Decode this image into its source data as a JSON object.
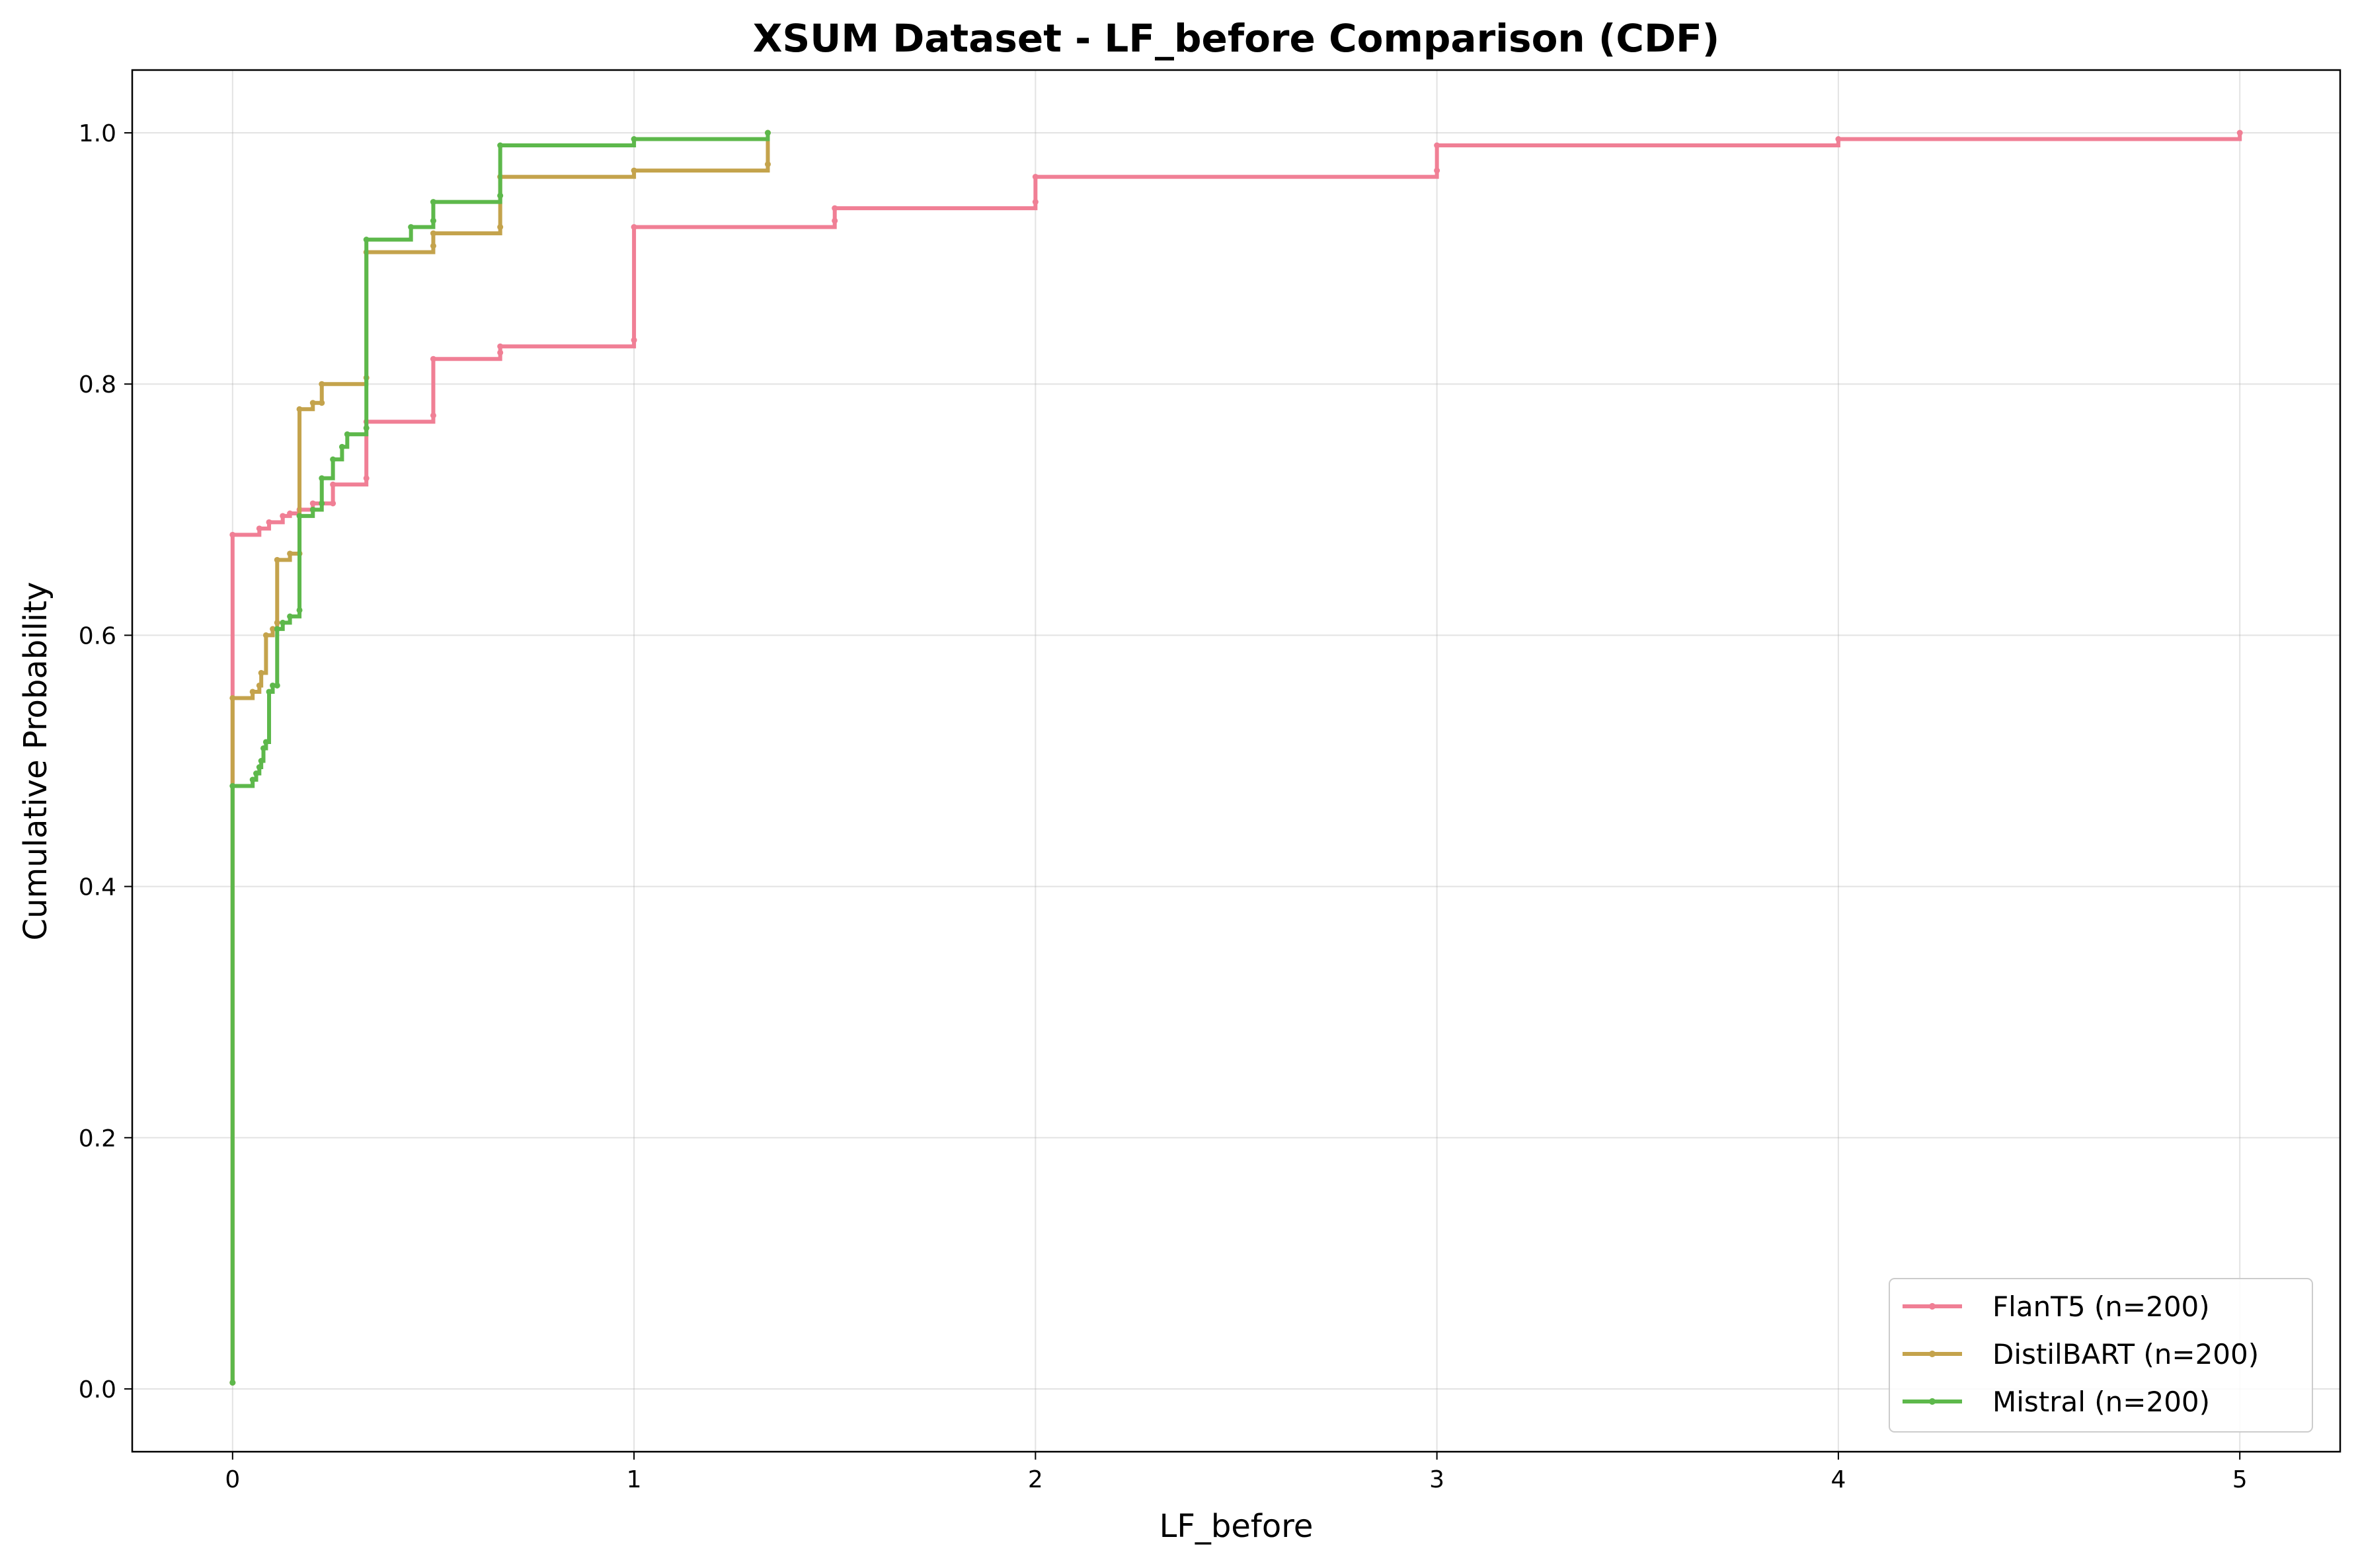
{
  "chart_data": {
    "type": "line",
    "subtype": "step-cdf",
    "title": "XSUM Dataset - LF_before Comparison (CDF)",
    "xlabel": "LF_before",
    "ylabel": "Cumulative Probability",
    "xlim": [
      -0.25,
      5.25
    ],
    "ylim": [
      -0.05,
      1.05
    ],
    "xticks": [
      0,
      1,
      2,
      3,
      4,
      5
    ],
    "xtick_labels": [
      "0",
      "1",
      "2",
      "3",
      "4",
      "5"
    ],
    "yticks": [
      0.0,
      0.2,
      0.4,
      0.6,
      0.8,
      1.0
    ],
    "ytick_labels": [
      "0.0",
      "0.2",
      "0.4",
      "0.6",
      "0.8",
      "1.0"
    ],
    "grid": true,
    "legend_position": "bottom-right",
    "series": [
      {
        "name": "FlanT5 (n=200)",
        "color": "#f07f95",
        "x": [
          0,
          0,
          0.0667,
          0.0909,
          0.125,
          0.1429,
          0.1667,
          0.2,
          0.25,
          0.25,
          0.3333,
          0.3333,
          0.5,
          0.5,
          0.6667,
          0.6667,
          1.0,
          1.0,
          1.5,
          1.5,
          2.0,
          2.0,
          3.0,
          3.0,
          4.0,
          5.0
        ],
        "y": [
          0.005,
          0.68,
          0.685,
          0.69,
          0.695,
          0.697,
          0.7,
          0.705,
          0.705,
          0.72,
          0.725,
          0.77,
          0.775,
          0.82,
          0.825,
          0.83,
          0.835,
          0.925,
          0.93,
          0.94,
          0.945,
          0.965,
          0.97,
          0.99,
          0.995,
          1.0
        ]
      },
      {
        "name": "DistilBART (n=200)",
        "color": "#c4a34c",
        "x": [
          0,
          0,
          0.05,
          0.0667,
          0.0714,
          0.0833,
          0.1,
          0.1111,
          0.1111,
          0.1429,
          0.1667,
          0.1667,
          0.2,
          0.2222,
          0.2222,
          0.3333,
          0.3333,
          0.5,
          0.5,
          0.6667,
          0.6667,
          1.0,
          1.3333,
          1.3333
        ],
        "y": [
          0.005,
          0.55,
          0.555,
          0.56,
          0.57,
          0.6,
          0.605,
          0.61,
          0.66,
          0.665,
          0.665,
          0.78,
          0.785,
          0.785,
          0.8,
          0.805,
          0.905,
          0.91,
          0.92,
          0.925,
          0.965,
          0.97,
          0.975,
          1.0
        ]
      },
      {
        "name": "Mistral (n=200)",
        "color": "#5db84b",
        "x": [
          0,
          0,
          0.05,
          0.0588,
          0.0667,
          0.0714,
          0.0769,
          0.0833,
          0.0909,
          0.1,
          0.1111,
          0.1111,
          0.125,
          0.1429,
          0.1667,
          0.1667,
          0.2,
          0.2222,
          0.2222,
          0.25,
          0.2727,
          0.2857,
          0.3333,
          0.3333,
          0.4444,
          0.5,
          0.5,
          0.6667,
          0.6667,
          1.0,
          1.3333
        ],
        "y": [
          0.005,
          0.48,
          0.485,
          0.49,
          0.495,
          0.5,
          0.51,
          0.515,
          0.555,
          0.56,
          0.56,
          0.605,
          0.61,
          0.615,
          0.62,
          0.695,
          0.7,
          0.705,
          0.725,
          0.74,
          0.75,
          0.76,
          0.765,
          0.915,
          0.925,
          0.93,
          0.945,
          0.95,
          0.99,
          0.995,
          1.0
        ]
      }
    ]
  }
}
